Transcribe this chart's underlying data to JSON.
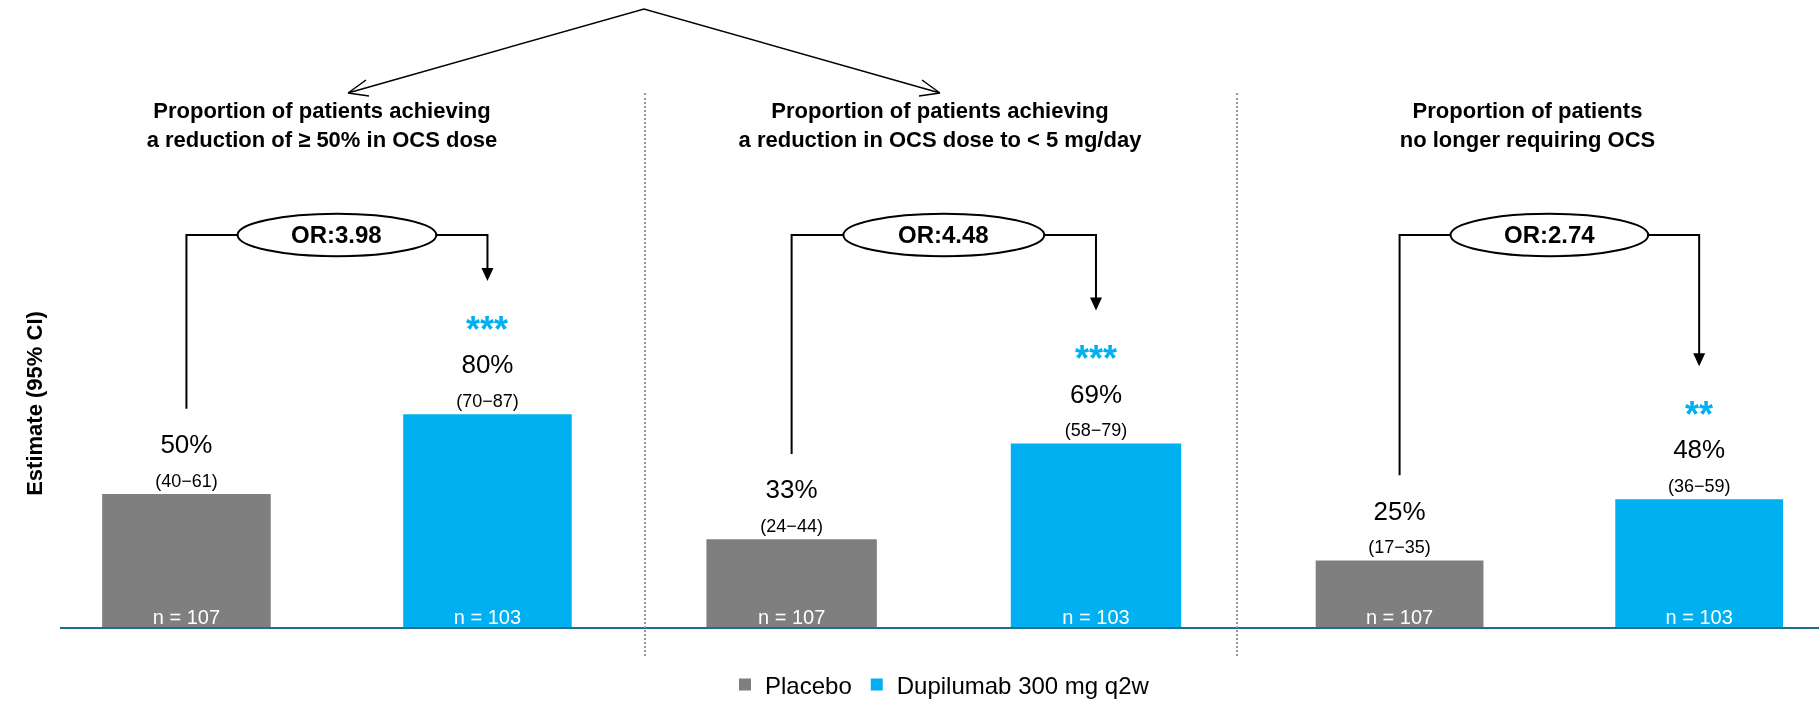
{
  "chart_data": [
    {
      "type": "bar",
      "title": "Proportion of patients achieving\na reduction of ≥ 50% in OCS dose",
      "ylabel": "Estimate (95% CI)",
      "categories": [
        "n = 107",
        "n = 103"
      ],
      "tick_labels": "x",
      "series": [
        {
          "color": "#7f7f7f",
          "values": [
            50,
            null
          ],
          "value_labels": [
            "50%\n(40−61)",
            null
          ]
        },
        {
          "color": "#00b0f0",
          "values": [
            null,
            80
          ],
          "value_labels": [
            null,
            "80%\n(70−87)"
          ]
        }
      ],
      "annotations": [
        "OR:3.98",
        {
          "text": "***",
          "x": "n = 103",
          "y": 80
        }
      ]
    },
    {
      "type": "bar",
      "title": "Proportion of patients achieving\na reduction in OCS dose to < 5 mg/day",
      "categories": [
        "n = 107",
        "n = 103"
      ],
      "tick_labels": "x",
      "legend": "bottom",
      "series": [
        {
          "name": "Placebo",
          "color": "#7f7f7f",
          "values": [
            33,
            null
          ],
          "value_labels": [
            "33%\n(24−44)",
            null
          ]
        },
        {
          "name": "Dupilumab 300 mg q2w",
          "color": "#00b0f0",
          "values": [
            null,
            69
          ],
          "value_labels": [
            null,
            "69%\n(58−79)"
          ]
        }
      ],
      "annotations": [
        "OR:4.48",
        {
          "text": "***",
          "x": "n = 103",
          "y": 69
        }
      ]
    },
    {
      "type": "bar",
      "title": "Proportion of patients\nno longer requiring OCS",
      "categories": [
        "n = 107",
        "n = 103"
      ],
      "tick_labels": "x",
      "series": [
        {
          "color": "#7f7f7f",
          "values": [
            25,
            null
          ],
          "value_labels": [
            "25%\n(17−35)",
            null
          ]
        },
        {
          "color": "#00b0f0",
          "values": [
            null,
            48
          ],
          "value_labels": [
            null,
            "48%\n(36−59)"
          ]
        }
      ],
      "annotations": [
        "OR:2.74",
        {
          "text": "**",
          "x": "n = 103",
          "y": 48
        }
      ]
    }
  ]
}
